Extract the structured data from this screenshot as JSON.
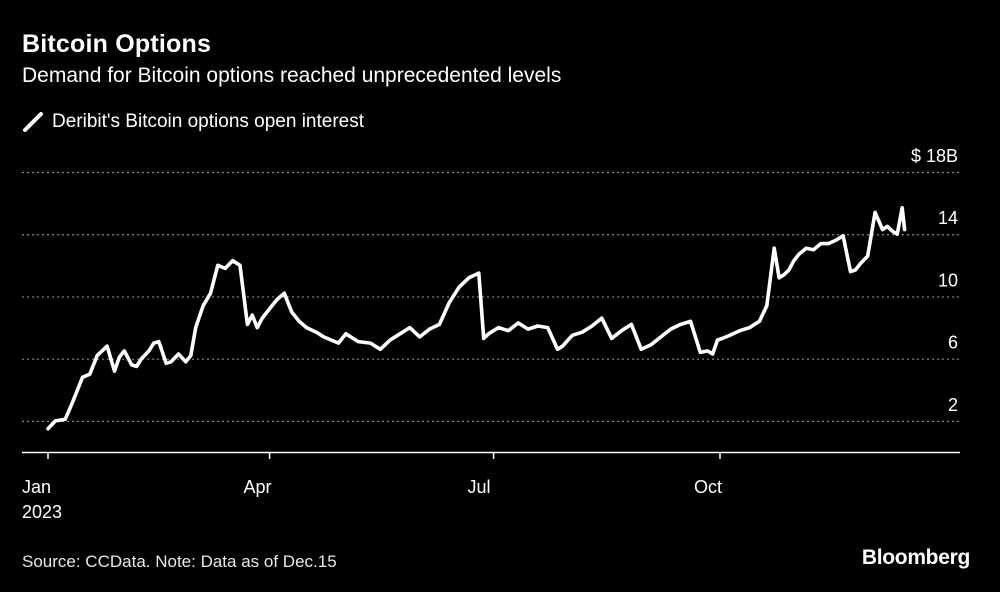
{
  "header": {
    "title": "Bitcoin Options",
    "subtitle": "Demand for Bitcoin options reached unprecedented levels"
  },
  "footer": {
    "source": "Source: CCData. Note: Data as of Dec.15",
    "brand": "Bloomberg"
  },
  "colors": {
    "background": "#000000",
    "line": "#ffffff",
    "grid": "#8a8a8a",
    "axis": "#ffffff"
  },
  "chart_data": {
    "type": "line",
    "ylim": [
      0,
      18
    ],
    "yticks": [
      2,
      6,
      10,
      14,
      18
    ],
    "ytick_labels": [
      "2",
      "6",
      "10",
      "14",
      "$ 18B"
    ],
    "grid": true,
    "legend_placement": "top-left",
    "x_range": [
      "2023-01-01",
      "2023-12-31"
    ],
    "xticks": [
      {
        "date": "2023-01-01",
        "label": "Jan",
        "sublabel": "2023"
      },
      {
        "date": "2023-04-01",
        "label": "Apr",
        "sublabel": ""
      },
      {
        "date": "2023-07-01",
        "label": "Jul",
        "sublabel": ""
      },
      {
        "date": "2023-10-01",
        "label": "Oct",
        "sublabel": ""
      }
    ],
    "series": [
      {
        "name": "Deribit's Bitcoin options open interest",
        "color": "#ffffff",
        "x": [
          "2023-01-01",
          "2023-01-04",
          "2023-01-08",
          "2023-01-11",
          "2023-01-15",
          "2023-01-18",
          "2023-01-21",
          "2023-01-25",
          "2023-01-28",
          "2023-01-30",
          "2023-02-01",
          "2023-02-04",
          "2023-02-06",
          "2023-02-08",
          "2023-02-11",
          "2023-02-13",
          "2023-02-15",
          "2023-02-18",
          "2023-02-20",
          "2023-02-23",
          "2023-02-26",
          "2023-02-28",
          "2023-03-02",
          "2023-03-05",
          "2023-03-08",
          "2023-03-11",
          "2023-03-14",
          "2023-03-17",
          "2023-03-20",
          "2023-03-23",
          "2023-03-25",
          "2023-03-27",
          "2023-03-29",
          "2023-03-31",
          "2023-04-01",
          "2023-04-04",
          "2023-04-07",
          "2023-04-10",
          "2023-04-13",
          "2023-04-16",
          "2023-04-20",
          "2023-04-23",
          "2023-04-26",
          "2023-04-29",
          "2023-05-02",
          "2023-05-07",
          "2023-05-12",
          "2023-05-16",
          "2023-05-20",
          "2023-05-24",
          "2023-05-28",
          "2023-06-01",
          "2023-06-05",
          "2023-06-09",
          "2023-06-13",
          "2023-06-17",
          "2023-06-21",
          "2023-06-25",
          "2023-06-27",
          "2023-06-29",
          "2023-07-01",
          "2023-07-03",
          "2023-07-07",
          "2023-07-11",
          "2023-07-15",
          "2023-07-19",
          "2023-07-23",
          "2023-07-27",
          "2023-07-29",
          "2023-08-02",
          "2023-08-06",
          "2023-08-10",
          "2023-08-14",
          "2023-08-18",
          "2023-08-22",
          "2023-08-26",
          "2023-08-30",
          "2023-09-03",
          "2023-09-07",
          "2023-09-11",
          "2023-09-15",
          "2023-09-19",
          "2023-09-23",
          "2023-09-26",
          "2023-09-28",
          "2023-09-30",
          "2023-10-02",
          "2023-10-05",
          "2023-10-09",
          "2023-10-13",
          "2023-10-17",
          "2023-10-20",
          "2023-10-23",
          "2023-10-25",
          "2023-10-27",
          "2023-10-29",
          "2023-10-31",
          "2023-11-02",
          "2023-11-05",
          "2023-11-08",
          "2023-11-11",
          "2023-11-14",
          "2023-11-17",
          "2023-11-20",
          "2023-11-23",
          "2023-11-25",
          "2023-11-27",
          "2023-11-30",
          "2023-12-03",
          "2023-12-06",
          "2023-12-08",
          "2023-12-10",
          "2023-12-12",
          "2023-12-14",
          "2023-12-15"
        ],
        "y": [
          1.5,
          2.0,
          2.1,
          3.2,
          4.8,
          5.0,
          6.2,
          6.8,
          5.2,
          6.1,
          6.5,
          5.6,
          5.5,
          6.0,
          6.5,
          7.0,
          7.1,
          5.7,
          5.8,
          6.3,
          5.8,
          6.2,
          8.0,
          9.4,
          10.2,
          12.0,
          11.8,
          12.3,
          12.0,
          8.2,
          8.8,
          8.0,
          8.6,
          9.0,
          9.2,
          9.8,
          10.2,
          9.0,
          8.4,
          8.0,
          7.7,
          7.4,
          7.2,
          7.0,
          7.6,
          7.1,
          7.0,
          6.6,
          7.2,
          7.6,
          8.0,
          7.4,
          7.9,
          8.2,
          9.6,
          10.6,
          11.2,
          11.5,
          7.3,
          7.6,
          7.8,
          8.0,
          7.8,
          8.3,
          7.9,
          8.1,
          8.0,
          6.6,
          6.8,
          7.5,
          7.7,
          8.1,
          8.6,
          7.3,
          7.8,
          8.2,
          6.6,
          6.9,
          7.4,
          7.9,
          8.2,
          8.4,
          6.4,
          6.5,
          6.3,
          7.2,
          7.3,
          7.5,
          7.8,
          8.0,
          8.4,
          9.4,
          13.1,
          11.2,
          11.4,
          11.7,
          12.3,
          12.7,
          13.1,
          13.0,
          13.4,
          13.4,
          13.6,
          13.9,
          11.6,
          11.7,
          12.1,
          12.6,
          15.4,
          14.3,
          14.5,
          14.2,
          14.0,
          15.7,
          14.3
        ]
      }
    ]
  }
}
